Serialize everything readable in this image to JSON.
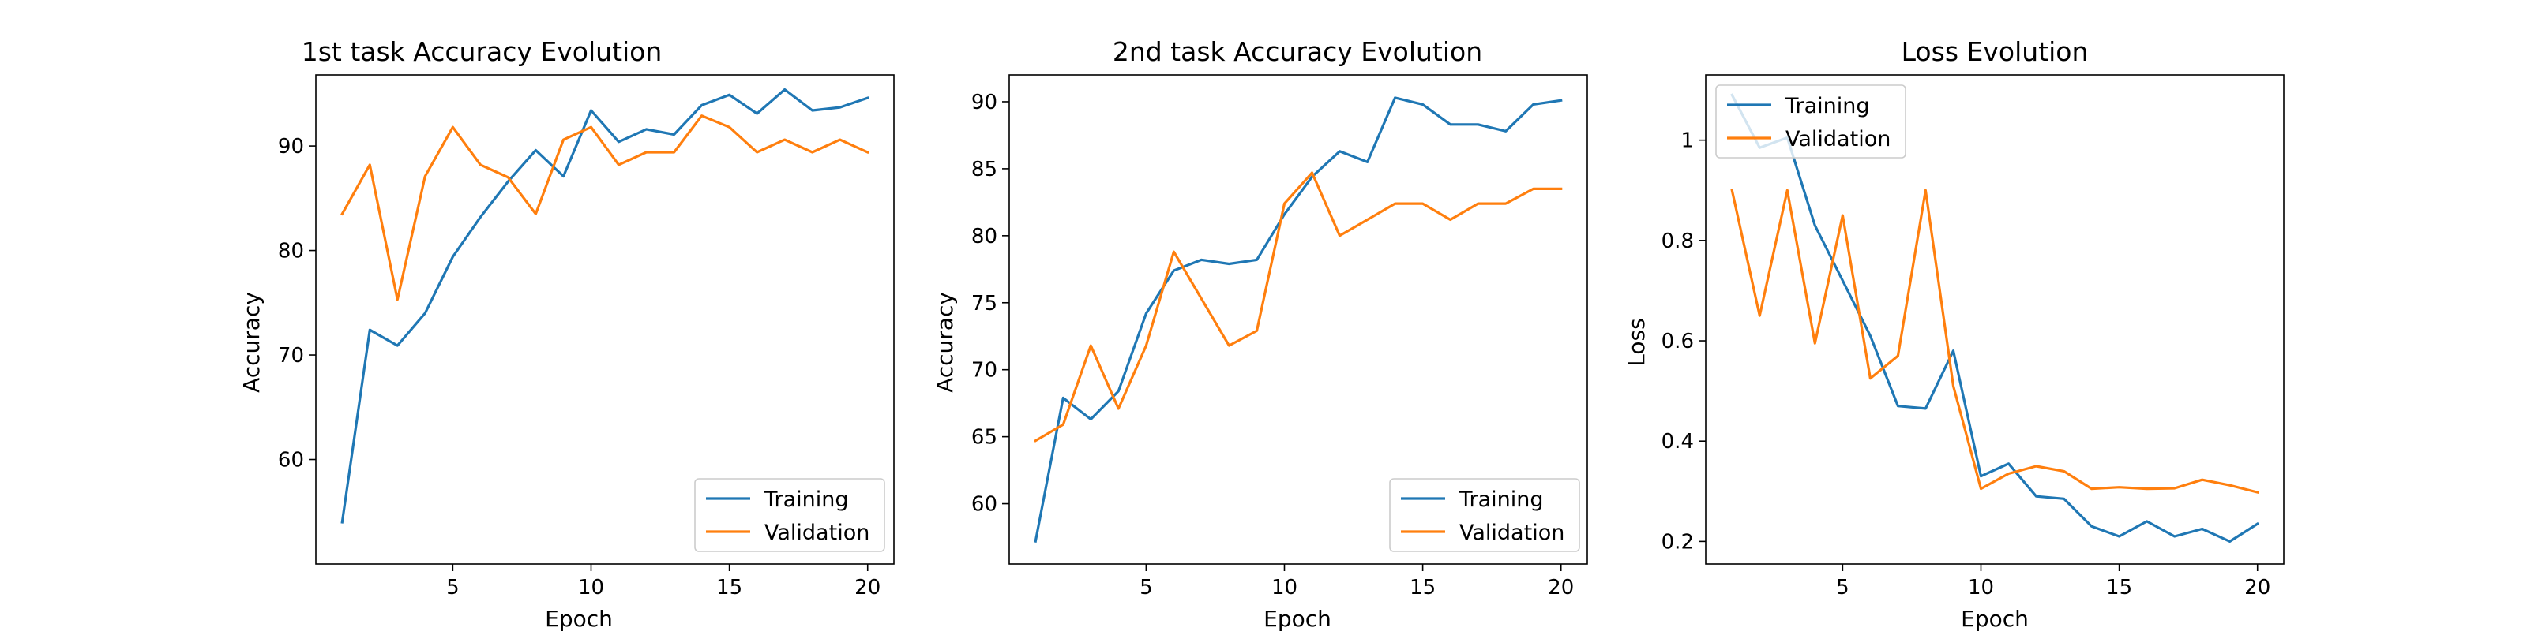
{
  "chart_data": [
    {
      "type": "line",
      "title": "1st task Accuracy Evolution",
      "xlabel": "Epoch",
      "ylabel": "Accuracy",
      "xlim": [
        0.05,
        20.95
      ],
      "ylim": [
        50.0,
        96.8
      ],
      "xticks": [
        5,
        10,
        15,
        20
      ],
      "yticks": [
        60,
        70,
        80,
        90
      ],
      "grid": false,
      "legend": "lower right",
      "x": [
        1,
        2,
        3,
        4,
        5,
        6,
        7,
        8,
        9,
        10,
        11,
        12,
        13,
        14,
        15,
        16,
        17,
        18,
        19,
        20
      ],
      "series": [
        {
          "name": "Training",
          "color": "#1f77b4",
          "values": [
            54.0,
            72.4,
            70.9,
            74.0,
            79.4,
            83.2,
            86.6,
            89.6,
            87.1,
            93.4,
            90.4,
            91.6,
            91.1,
            93.9,
            94.9,
            93.1,
            95.4,
            93.4,
            93.7,
            94.6
          ]
        },
        {
          "name": "Validation",
          "color": "#ff7f0e",
          "values": [
            83.5,
            88.2,
            75.3,
            87.1,
            91.8,
            88.2,
            87.0,
            83.5,
            90.6,
            91.8,
            88.2,
            89.4,
            89.4,
            92.9,
            91.8,
            89.4,
            90.6,
            89.4,
            90.6,
            89.4
          ]
        }
      ]
    },
    {
      "type": "line",
      "title": "2nd task Accuracy Evolution",
      "xlabel": "Epoch",
      "ylabel": "Accuracy",
      "xlim": [
        0.05,
        20.95
      ],
      "ylim": [
        55.5,
        92.0
      ],
      "xticks": [
        5,
        10,
        15,
        20
      ],
      "yticks": [
        60,
        65,
        70,
        75,
        80,
        85,
        90
      ],
      "grid": false,
      "legend": "lower right",
      "x": [
        1,
        2,
        3,
        4,
        5,
        6,
        7,
        8,
        9,
        10,
        11,
        12,
        13,
        14,
        15,
        16,
        17,
        18,
        19,
        20
      ],
      "series": [
        {
          "name": "Training",
          "color": "#1f77b4",
          "values": [
            57.2,
            67.9,
            66.3,
            68.4,
            74.2,
            77.4,
            78.2,
            77.9,
            78.2,
            81.6,
            84.4,
            86.3,
            85.5,
            90.3,
            89.8,
            88.3,
            88.3,
            87.8,
            89.8,
            90.1
          ]
        },
        {
          "name": "Validation",
          "color": "#ff7f0e",
          "values": [
            64.7,
            65.9,
            71.8,
            67.1,
            71.8,
            78.8,
            75.3,
            71.8,
            72.9,
            82.4,
            84.7,
            80.0,
            81.2,
            82.4,
            82.4,
            81.2,
            82.4,
            82.4,
            83.5,
            83.5
          ]
        }
      ]
    },
    {
      "type": "line",
      "title": "Loss Evolution",
      "xlabel": "Epoch",
      "ylabel": "Loss",
      "xlim": [
        0.05,
        20.95
      ],
      "ylim": [
        0.155,
        1.13
      ],
      "xticks": [
        5,
        10,
        15,
        20
      ],
      "yticks": [
        0.2,
        0.4,
        0.6,
        0.8,
        1.0
      ],
      "grid": false,
      "legend": "upper left",
      "x": [
        1,
        2,
        3,
        4,
        5,
        6,
        7,
        8,
        9,
        10,
        11,
        12,
        13,
        14,
        15,
        16,
        17,
        18,
        19,
        20
      ],
      "series": [
        {
          "name": "Training",
          "color": "#1f77b4",
          "values": [
            1.09,
            0.985,
            1.005,
            0.83,
            0.72,
            0.61,
            0.47,
            0.465,
            0.58,
            0.33,
            0.355,
            0.29,
            0.285,
            0.23,
            0.21,
            0.24,
            0.21,
            0.225,
            0.2,
            0.235
          ]
        },
        {
          "name": "Validation",
          "color": "#ff7f0e",
          "values": [
            0.9,
            0.65,
            0.9,
            0.595,
            0.85,
            0.525,
            0.57,
            0.9,
            0.51,
            0.305,
            0.335,
            0.35,
            0.34,
            0.305,
            0.308,
            0.305,
            0.306,
            0.323,
            0.312,
            0.298
          ]
        }
      ]
    }
  ]
}
